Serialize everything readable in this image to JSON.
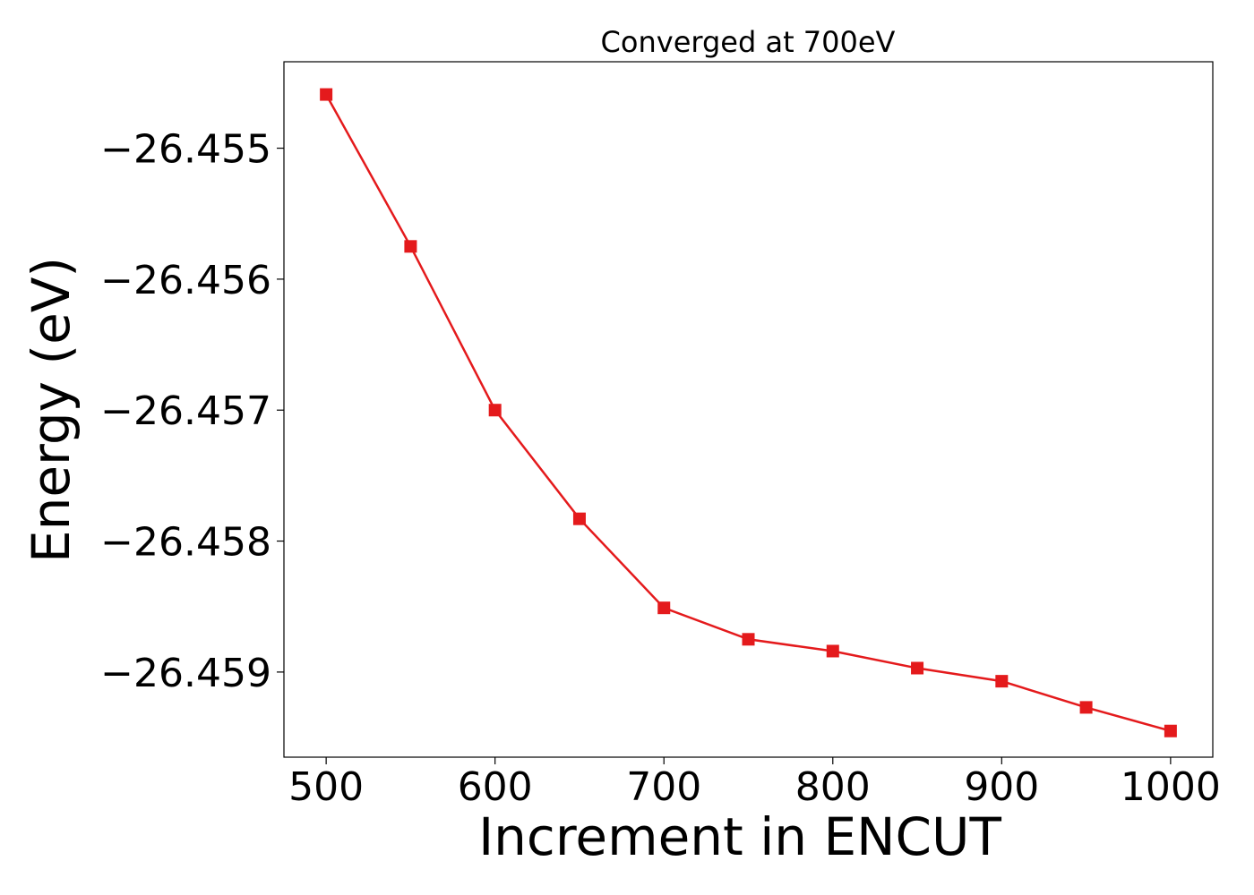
{
  "chart_data": {
    "type": "line",
    "title": "Converged at 700eV",
    "xlabel": "Increment in ENCUT",
    "ylabel": "Energy (eV)",
    "x": [
      500,
      550,
      600,
      650,
      700,
      750,
      800,
      850,
      900,
      950,
      1000
    ],
    "series": [
      {
        "values": [
          -26.45459,
          -26.45575,
          -26.457,
          -26.45783,
          -26.45851,
          -26.45875,
          -26.45884,
          -26.45897,
          -26.45907,
          -26.45927,
          -26.45945
        ],
        "color": "#e41a1c",
        "marker": "square"
      }
    ],
    "xlim": [
      475,
      1025
    ],
    "ylim": [
      -26.45965,
      -26.45434
    ],
    "xticks": [
      500,
      600,
      700,
      800,
      900,
      1000
    ],
    "xtick_labels": [
      "500",
      "600",
      "700",
      "800",
      "900",
      "1000"
    ],
    "yticks": [
      -26.455,
      -26.456,
      -26.457,
      -26.458,
      -26.459
    ],
    "ytick_labels": [
      "−26.455",
      "−26.456",
      "−26.457",
      "−26.458",
      "−26.459"
    ],
    "grid": false,
    "legend": "none"
  }
}
